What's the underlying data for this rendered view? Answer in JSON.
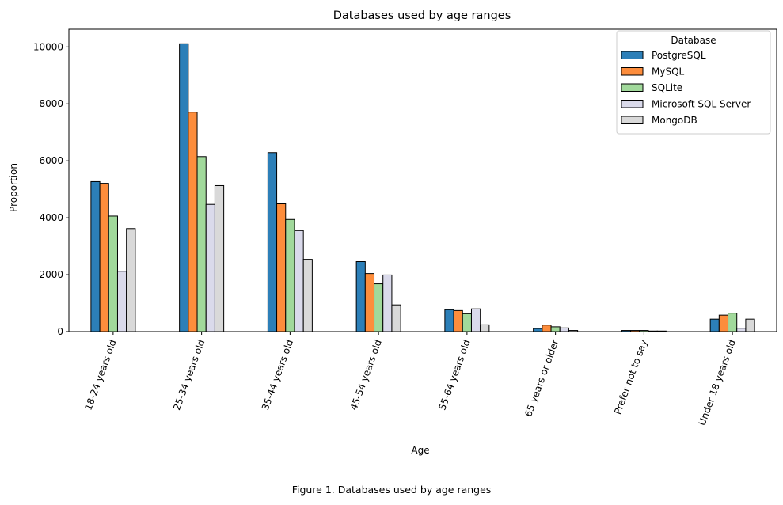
{
  "caption": "Figure 1. Databases used by age ranges",
  "chart_data": {
    "type": "bar",
    "title": "Databases used by age ranges",
    "xlabel": "Age",
    "ylabel": "Proportion",
    "ylim": [
      0,
      10620
    ],
    "yticks": [
      0,
      2000,
      4000,
      6000,
      8000,
      10000
    ],
    "grid": false,
    "legend": {
      "title": "Database",
      "placement": "top-right"
    },
    "categories": [
      "18-24 years old",
      "25-34 years old",
      "35-44 years old",
      "45-54 years old",
      "55-64 years old",
      "65 years or older",
      "Prefer not to say",
      "Under 18 years old"
    ],
    "series": [
      {
        "name": "PostgreSQL",
        "color": "#2c7fb8",
        "values": [
          5270,
          10110,
          6290,
          2460,
          770,
          110,
          40,
          440
        ]
      },
      {
        "name": "MySQL",
        "color": "#fd8d3c",
        "values": [
          5210,
          7710,
          4490,
          2040,
          740,
          230,
          40,
          580
        ]
      },
      {
        "name": "SQLite",
        "color": "#a1d99b",
        "values": [
          4060,
          6150,
          3940,
          1680,
          630,
          170,
          40,
          650
        ]
      },
      {
        "name": "Microsoft SQL Server",
        "color": "#dadaeb",
        "values": [
          2120,
          4470,
          3550,
          1990,
          800,
          130,
          20,
          120
        ]
      },
      {
        "name": "MongoDB",
        "color": "#d9d9d9",
        "values": [
          3620,
          5130,
          2540,
          940,
          240,
          40,
          20,
          440
        ]
      }
    ]
  }
}
